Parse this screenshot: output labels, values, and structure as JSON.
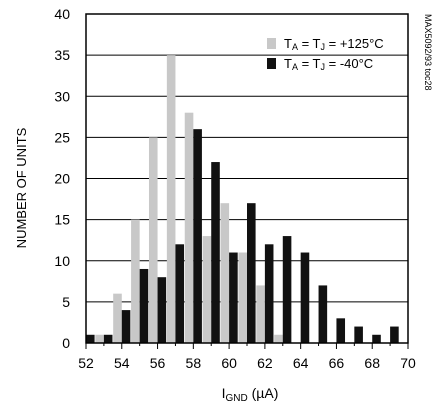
{
  "chart_data": {
    "type": "bar",
    "title": "",
    "xlabel_main": "I",
    "xlabel_sub": "GND",
    "xlabel_unit": " (µA)",
    "ylabel": "NUMBER OF UNITS",
    "side_label": "MAX5092/93 toc28",
    "xlim": [
      52,
      70
    ],
    "ylim": [
      0,
      40
    ],
    "x_ticks": [
      52,
      54,
      56,
      58,
      60,
      62,
      64,
      66,
      68,
      70
    ],
    "y_ticks": [
      0,
      5,
      10,
      15,
      20,
      25,
      30,
      35,
      40
    ],
    "grid": true,
    "legend_position": "top-right",
    "series": [
      {
        "legend": {
          "t1": "T",
          "s1": "A",
          "mid": " = T",
          "s2": "J",
          "val": " =  +125°C"
        },
        "color": "#c8c8c8",
        "points": [
          {
            "x": 53,
            "y": 1
          },
          {
            "x": 54,
            "y": 6
          },
          {
            "x": 55,
            "y": 15
          },
          {
            "x": 56,
            "y": 25
          },
          {
            "x": 57,
            "y": 35
          },
          {
            "x": 58,
            "y": 28
          },
          {
            "x": 59,
            "y": 13
          },
          {
            "x": 60,
            "y": 17
          },
          {
            "x": 61,
            "y": 11
          },
          {
            "x": 62,
            "y": 7
          },
          {
            "x": 63,
            "y": 1
          }
        ]
      },
      {
        "legend": {
          "t1": "T",
          "s1": "A",
          "mid": " = T",
          "s2": "J",
          "val": " =  -40°C"
        },
        "color": "#111111",
        "points": [
          {
            "x": 52,
            "y": 1
          },
          {
            "x": 53,
            "y": 1
          },
          {
            "x": 54,
            "y": 4
          },
          {
            "x": 55,
            "y": 9
          },
          {
            "x": 56,
            "y": 8
          },
          {
            "x": 57,
            "y": 12
          },
          {
            "x": 58,
            "y": 26
          },
          {
            "x": 59,
            "y": 22
          },
          {
            "x": 60,
            "y": 11
          },
          {
            "x": 61,
            "y": 17
          },
          {
            "x": 62,
            "y": 12
          },
          {
            "x": 63,
            "y": 13
          },
          {
            "x": 64,
            "y": 11
          },
          {
            "x": 65,
            "y": 7
          },
          {
            "x": 66,
            "y": 3
          },
          {
            "x": 67,
            "y": 2
          },
          {
            "x": 68,
            "y": 1
          },
          {
            "x": 69,
            "y": 2
          }
        ]
      }
    ]
  }
}
